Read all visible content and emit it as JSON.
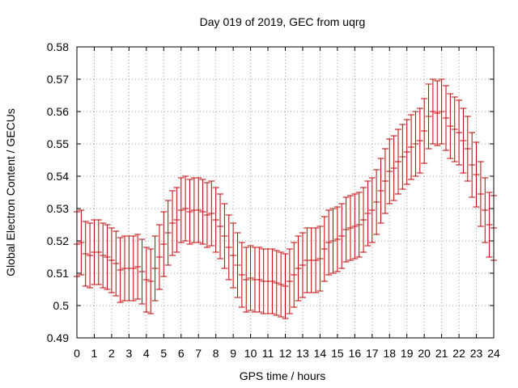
{
  "chart_data": {
    "type": "errorbar",
    "title": "Day 019 of 2019, GEC from uqrg",
    "xlabel": "GPS time / hours",
    "ylabel": "Global Electron Content / GECUs",
    "xlim": [
      0,
      24
    ],
    "ylim": [
      0.49,
      0.58
    ],
    "xticks": [
      "0",
      "1",
      "2",
      "3",
      "4",
      "5",
      "6",
      "7",
      "8",
      "9",
      "10",
      "11",
      "12",
      "13",
      "14",
      "15",
      "16",
      "17",
      "18",
      "19",
      "20",
      "21",
      "22",
      "23",
      "24"
    ],
    "yticks": [
      "0.49",
      "0.5",
      "0.51",
      "0.52",
      "0.53",
      "0.54",
      "0.55",
      "0.56",
      "0.57",
      "0.58"
    ],
    "grid": true,
    "bar_color": "#c00000",
    "series": [
      {
        "name": "GEC",
        "x": [
          0.0,
          0.25,
          0.5,
          0.75,
          1.0,
          1.25,
          1.5,
          1.75,
          2.0,
          2.25,
          2.5,
          2.75,
          3.0,
          3.25,
          3.5,
          3.75,
          4.0,
          4.25,
          4.5,
          4.75,
          5.0,
          5.25,
          5.5,
          5.75,
          6.0,
          6.25,
          6.5,
          6.75,
          7.0,
          7.25,
          7.5,
          7.75,
          8.0,
          8.25,
          8.5,
          8.75,
          9.0,
          9.25,
          9.5,
          9.75,
          10.0,
          10.25,
          10.5,
          10.75,
          11.0,
          11.25,
          11.5,
          11.75,
          12.0,
          12.25,
          12.5,
          12.75,
          13.0,
          13.25,
          13.5,
          13.75,
          14.0,
          14.25,
          14.5,
          14.75,
          15.0,
          15.25,
          15.5,
          15.75,
          16.0,
          16.25,
          16.5,
          16.75,
          17.0,
          17.25,
          17.5,
          17.75,
          18.0,
          18.25,
          18.5,
          18.75,
          19.0,
          19.25,
          19.5,
          19.75,
          20.0,
          20.25,
          20.5,
          20.75,
          21.0,
          21.25,
          21.5,
          21.75,
          22.0,
          22.25,
          22.5,
          22.75,
          23.0,
          23.25,
          23.5,
          23.75,
          24.0
        ],
        "y": [
          0.519,
          0.5195,
          0.516,
          0.5155,
          0.5165,
          0.5165,
          0.5155,
          0.515,
          0.514,
          0.513,
          0.511,
          0.5115,
          0.5115,
          0.5115,
          0.512,
          0.5105,
          0.508,
          0.5075,
          0.5115,
          0.515,
          0.519,
          0.5225,
          0.5255,
          0.5265,
          0.5295,
          0.53,
          0.529,
          0.5295,
          0.5295,
          0.529,
          0.528,
          0.5285,
          0.5265,
          0.5245,
          0.5215,
          0.518,
          0.5155,
          0.5125,
          0.5095,
          0.508,
          0.5085,
          0.508,
          0.508,
          0.5075,
          0.5075,
          0.5075,
          0.507,
          0.5065,
          0.506,
          0.5075,
          0.5095,
          0.5115,
          0.5125,
          0.514,
          0.514,
          0.514,
          0.5145,
          0.5175,
          0.5195,
          0.52,
          0.5205,
          0.5215,
          0.5235,
          0.524,
          0.5245,
          0.525,
          0.5265,
          0.5285,
          0.5295,
          0.532,
          0.5355,
          0.5385,
          0.5415,
          0.5425,
          0.5445,
          0.546,
          0.5475,
          0.549,
          0.55,
          0.551,
          0.554,
          0.5585,
          0.56,
          0.5595,
          0.56,
          0.558,
          0.5555,
          0.5545,
          0.5535,
          0.551,
          0.5485,
          0.5435,
          0.5405,
          0.5345,
          0.5295,
          0.525,
          0.524
        ],
        "err": [
          0.01,
          0.01,
          0.01,
          0.01,
          0.01,
          0.01,
          0.01,
          0.01,
          0.01,
          0.01,
          0.01,
          0.01,
          0.01,
          0.01,
          0.01,
          0.01,
          0.01,
          0.01,
          0.01,
          0.01,
          0.01,
          0.01,
          0.01,
          0.01,
          0.01,
          0.01,
          0.01,
          0.01,
          0.01,
          0.01,
          0.01,
          0.01,
          0.01,
          0.01,
          0.01,
          0.01,
          0.01,
          0.01,
          0.01,
          0.01,
          0.01,
          0.01,
          0.01,
          0.01,
          0.01,
          0.01,
          0.01,
          0.01,
          0.01,
          0.01,
          0.01,
          0.01,
          0.01,
          0.01,
          0.01,
          0.01,
          0.01,
          0.01,
          0.01,
          0.01,
          0.01,
          0.01,
          0.01,
          0.01,
          0.01,
          0.01,
          0.01,
          0.01,
          0.01,
          0.01,
          0.01,
          0.01,
          0.01,
          0.01,
          0.01,
          0.01,
          0.01,
          0.01,
          0.01,
          0.01,
          0.01,
          0.01,
          0.01,
          0.01,
          0.01,
          0.01,
          0.01,
          0.01,
          0.01,
          0.01,
          0.01,
          0.01,
          0.01,
          0.01,
          0.01,
          0.01,
          0.01
        ]
      }
    ]
  }
}
